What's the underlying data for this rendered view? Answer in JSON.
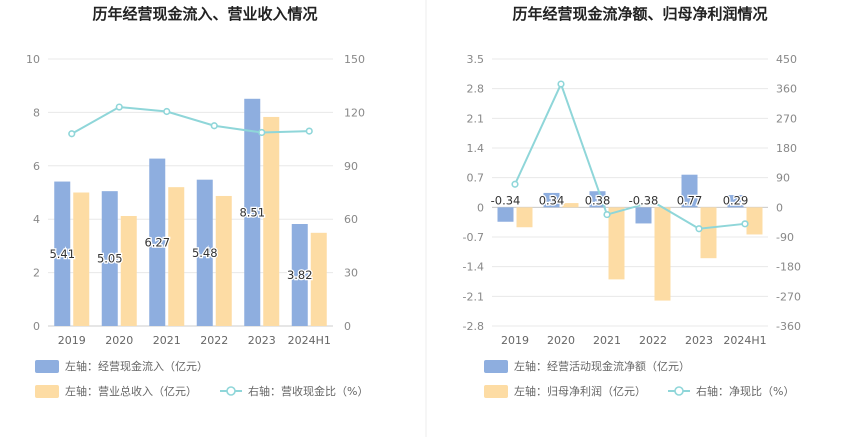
{
  "chart_data": [
    {
      "type": "bar",
      "title": "历年经营现金流入、营业收入情况",
      "categories": [
        "2019",
        "2020",
        "2021",
        "2022",
        "2023",
        "2024H1"
      ],
      "y_left": {
        "ticks": [
          "0",
          "2",
          "4",
          "6",
          "8",
          "10"
        ],
        "range": [
          0,
          10
        ]
      },
      "y_right": {
        "ticks": [
          "0",
          "30",
          "60",
          "90",
          "120",
          "150"
        ],
        "range": [
          0,
          150
        ]
      },
      "series": [
        {
          "name": "左轴：经营现金流入（亿元）",
          "kind": "bar",
          "axis": "left",
          "color": "#8eaedf",
          "values": [
            5.41,
            5.05,
            6.27,
            5.48,
            8.51,
            3.82
          ],
          "labels": [
            "5.41",
            "5.05",
            "6.27",
            "5.48",
            "8.51",
            "3.82"
          ]
        },
        {
          "name": "左轴：营业总收入（亿元）",
          "kind": "bar",
          "axis": "left",
          "color": "#fddca4",
          "values": [
            5.0,
            4.12,
            5.2,
            4.87,
            7.83,
            3.49
          ]
        },
        {
          "name": "右轴：营收现金比（%）",
          "kind": "line",
          "axis": "right",
          "color": "#8fd6d9",
          "values": [
            108,
            123,
            120.5,
            112.5,
            108.7,
            109.5
          ]
        }
      ]
    },
    {
      "type": "bar",
      "title": "历年经营现金流净额、归母净利润情况",
      "categories": [
        "2019",
        "2020",
        "2021",
        "2022",
        "2023",
        "2024H1"
      ],
      "y_left": {
        "ticks": [
          "-2.8",
          "-2.1",
          "-1.4",
          "-0.7",
          "0",
          "0.7",
          "1.4",
          "2.1",
          "2.8",
          "3.5"
        ],
        "range": [
          -2.8,
          3.5
        ]
      },
      "y_right": {
        "ticks": [
          "-360",
          "-270",
          "-180",
          "-90",
          "0",
          "90",
          "180",
          "270",
          "360",
          "450"
        ],
        "range": [
          -360,
          450
        ]
      },
      "series": [
        {
          "name": "左轴：经营活动现金流净额（亿元）",
          "kind": "bar",
          "axis": "left",
          "color": "#8eaedf",
          "values": [
            -0.34,
            0.34,
            0.38,
            -0.38,
            0.77,
            0.29
          ],
          "labels": [
            "-0.34",
            "0.34",
            "0.38",
            "-0.38",
            "0.77",
            "0.29"
          ]
        },
        {
          "name": "左轴：归母净利润（亿元）",
          "kind": "bar",
          "axis": "left",
          "color": "#fddca4",
          "values": [
            -0.47,
            0.1,
            -1.7,
            -2.2,
            -1.2,
            -0.64
          ]
        },
        {
          "name": "右轴：净现比（%）",
          "kind": "line",
          "axis": "right",
          "color": "#8fd6d9",
          "values": [
            70,
            374,
            -22,
            17,
            -65,
            -50
          ]
        }
      ]
    }
  ]
}
